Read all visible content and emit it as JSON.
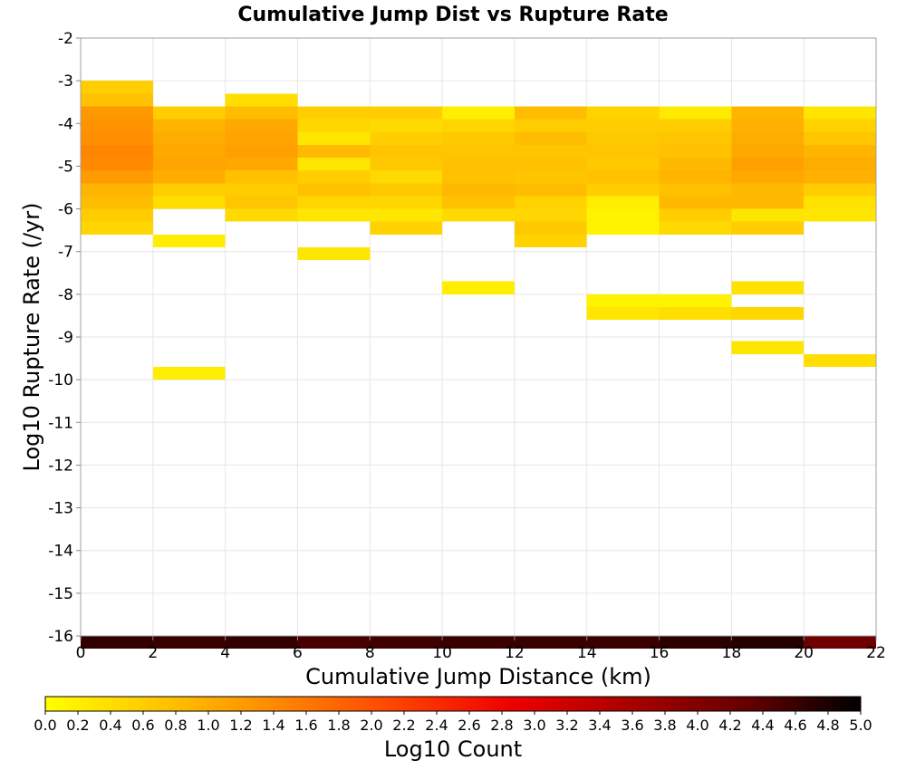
{
  "chart_data": {
    "type": "heatmap",
    "title": "Cumulative Jump Dist vs Rupture Rate",
    "xlabel": "Cumulative Jump Distance (km)",
    "ylabel": "Log10 Rupture Rate (/yr)",
    "xlim": [
      0,
      22
    ],
    "ylim": [
      -16,
      -2
    ],
    "x_ticks": [
      "0",
      "2",
      "4",
      "6",
      "8",
      "10",
      "12",
      "14",
      "16",
      "18",
      "20",
      "22"
    ],
    "y_ticks": [
      "-2",
      "-3",
      "-4",
      "-5",
      "-6",
      "-7",
      "-8",
      "-9",
      "-10",
      "-11",
      "-12",
      "-13",
      "-14",
      "-15",
      "-16"
    ],
    "x_bin_width": 2,
    "y_bin_height": 0.3,
    "grid": true,
    "colorbar": {
      "label": "Log10 Count",
      "range": [
        0.0,
        5.0
      ],
      "ticks": [
        "0.0",
        "0.2",
        "0.4",
        "0.6",
        "0.8",
        "1.0",
        "1.2",
        "1.4",
        "1.6",
        "1.8",
        "2.0",
        "2.2",
        "2.4",
        "2.6",
        "2.8",
        "3.0",
        "3.2",
        "3.4",
        "3.6",
        "3.8",
        "4.0",
        "4.2",
        "4.4",
        "4.6",
        "4.8",
        "5.0"
      ],
      "stops": [
        "#ffff00",
        "#ffc400",
        "#ff8800",
        "#ff4400",
        "#ee0000",
        "#aa0000",
        "#660000",
        "#000000"
      ]
    },
    "cells": [
      {
        "x": 0,
        "y": -3.0,
        "v": 0.6
      },
      {
        "x": 0,
        "y": -3.3,
        "v": 0.75
      },
      {
        "x": 0,
        "y": -3.6,
        "v": 1.25
      },
      {
        "x": 0,
        "y": -3.9,
        "v": 1.3
      },
      {
        "x": 0,
        "y": -4.2,
        "v": 1.35
      },
      {
        "x": 0,
        "y": -4.5,
        "v": 1.45
      },
      {
        "x": 0,
        "y": -4.8,
        "v": 1.4
      },
      {
        "x": 0,
        "y": -5.1,
        "v": 1.2
      },
      {
        "x": 0,
        "y": -5.4,
        "v": 0.9
      },
      {
        "x": 0,
        "y": -5.7,
        "v": 0.8
      },
      {
        "x": 0,
        "y": -6.0,
        "v": 0.6
      },
      {
        "x": 0,
        "y": -6.3,
        "v": 0.5
      },
      {
        "x": 2,
        "y": -3.6,
        "v": 0.6
      },
      {
        "x": 2,
        "y": -3.9,
        "v": 0.9
      },
      {
        "x": 2,
        "y": -4.2,
        "v": 1.0
      },
      {
        "x": 2,
        "y": -4.5,
        "v": 1.05
      },
      {
        "x": 2,
        "y": -4.8,
        "v": 1.1
      },
      {
        "x": 2,
        "y": -5.1,
        "v": 1.0
      },
      {
        "x": 2,
        "y": -5.4,
        "v": 0.6
      },
      {
        "x": 2,
        "y": -5.7,
        "v": 0.4
      },
      {
        "x": 2,
        "y": -6.6,
        "v": 0.2
      },
      {
        "x": 2,
        "y": -9.7,
        "v": 0.2
      },
      {
        "x": 4,
        "y": -3.3,
        "v": 0.4
      },
      {
        "x": 4,
        "y": -3.6,
        "v": 0.8
      },
      {
        "x": 4,
        "y": -3.9,
        "v": 1.05
      },
      {
        "x": 4,
        "y": -4.2,
        "v": 1.1
      },
      {
        "x": 4,
        "y": -4.5,
        "v": 1.15
      },
      {
        "x": 4,
        "y": -4.8,
        "v": 1.05
      },
      {
        "x": 4,
        "y": -5.1,
        "v": 0.75
      },
      {
        "x": 4,
        "y": -5.4,
        "v": 0.6
      },
      {
        "x": 4,
        "y": -5.7,
        "v": 0.7
      },
      {
        "x": 4,
        "y": -6.0,
        "v": 0.45
      },
      {
        "x": 6,
        "y": -3.6,
        "v": 0.6
      },
      {
        "x": 6,
        "y": -3.9,
        "v": 0.5
      },
      {
        "x": 6,
        "y": -4.2,
        "v": 0.3
      },
      {
        "x": 6,
        "y": -4.5,
        "v": 0.85
      },
      {
        "x": 6,
        "y": -4.8,
        "v": 0.3
      },
      {
        "x": 6,
        "y": -5.1,
        "v": 0.6
      },
      {
        "x": 6,
        "y": -5.4,
        "v": 0.75
      },
      {
        "x": 6,
        "y": -5.7,
        "v": 0.5
      },
      {
        "x": 6,
        "y": -6.0,
        "v": 0.3
      },
      {
        "x": 6,
        "y": -6.9,
        "v": 0.3
      },
      {
        "x": 8,
        "y": -3.6,
        "v": 0.6
      },
      {
        "x": 8,
        "y": -3.9,
        "v": 0.45
      },
      {
        "x": 8,
        "y": -4.2,
        "v": 0.6
      },
      {
        "x": 8,
        "y": -4.5,
        "v": 0.7
      },
      {
        "x": 8,
        "y": -4.8,
        "v": 0.65
      },
      {
        "x": 8,
        "y": -5.1,
        "v": 0.45
      },
      {
        "x": 8,
        "y": -5.4,
        "v": 0.65
      },
      {
        "x": 8,
        "y": -5.7,
        "v": 0.5
      },
      {
        "x": 8,
        "y": -6.0,
        "v": 0.3
      },
      {
        "x": 8,
        "y": -6.3,
        "v": 0.55
      },
      {
        "x": 10,
        "y": -3.6,
        "v": 0.2
      },
      {
        "x": 10,
        "y": -3.9,
        "v": 0.5
      },
      {
        "x": 10,
        "y": -4.2,
        "v": 0.65
      },
      {
        "x": 10,
        "y": -4.5,
        "v": 0.7
      },
      {
        "x": 10,
        "y": -4.8,
        "v": 0.75
      },
      {
        "x": 10,
        "y": -5.1,
        "v": 0.75
      },
      {
        "x": 10,
        "y": -5.4,
        "v": 0.85
      },
      {
        "x": 10,
        "y": -5.7,
        "v": 0.75
      },
      {
        "x": 10,
        "y": -6.0,
        "v": 0.45
      },
      {
        "x": 10,
        "y": -7.7,
        "v": 0.2
      },
      {
        "x": 12,
        "y": -3.6,
        "v": 0.8
      },
      {
        "x": 12,
        "y": -3.9,
        "v": 0.6
      },
      {
        "x": 12,
        "y": -4.2,
        "v": 0.8
      },
      {
        "x": 12,
        "y": -4.5,
        "v": 0.7
      },
      {
        "x": 12,
        "y": -4.8,
        "v": 0.75
      },
      {
        "x": 12,
        "y": -5.1,
        "v": 0.7
      },
      {
        "x": 12,
        "y": -5.4,
        "v": 0.8
      },
      {
        "x": 12,
        "y": -5.7,
        "v": 0.55
      },
      {
        "x": 12,
        "y": -6.0,
        "v": 0.5
      },
      {
        "x": 12,
        "y": -6.3,
        "v": 0.65
      },
      {
        "x": 12,
        "y": -6.6,
        "v": 0.55
      },
      {
        "x": 14,
        "y": -3.6,
        "v": 0.55
      },
      {
        "x": 14,
        "y": -3.9,
        "v": 0.6
      },
      {
        "x": 14,
        "y": -4.2,
        "v": 0.65
      },
      {
        "x": 14,
        "y": -4.5,
        "v": 0.7
      },
      {
        "x": 14,
        "y": -4.8,
        "v": 0.65
      },
      {
        "x": 14,
        "y": -5.1,
        "v": 0.75
      },
      {
        "x": 14,
        "y": -5.4,
        "v": 0.6
      },
      {
        "x": 14,
        "y": -5.7,
        "v": 0.2
      },
      {
        "x": 14,
        "y": -6.0,
        "v": 0.15
      },
      {
        "x": 14,
        "y": -6.3,
        "v": 0.15
      },
      {
        "x": 14,
        "y": -8.0,
        "v": 0.15
      },
      {
        "x": 14,
        "y": -8.3,
        "v": 0.3
      },
      {
        "x": 16,
        "y": -3.6,
        "v": 0.25
      },
      {
        "x": 16,
        "y": -3.9,
        "v": 0.6
      },
      {
        "x": 16,
        "y": -4.2,
        "v": 0.7
      },
      {
        "x": 16,
        "y": -4.5,
        "v": 0.75
      },
      {
        "x": 16,
        "y": -4.8,
        "v": 0.85
      },
      {
        "x": 16,
        "y": -5.1,
        "v": 0.9
      },
      {
        "x": 16,
        "y": -5.4,
        "v": 0.75
      },
      {
        "x": 16,
        "y": -5.7,
        "v": 0.85
      },
      {
        "x": 16,
        "y": -6.0,
        "v": 0.6
      },
      {
        "x": 16,
        "y": -6.3,
        "v": 0.45
      },
      {
        "x": 16,
        "y": -8.0,
        "v": 0.15
      },
      {
        "x": 16,
        "y": -8.3,
        "v": 0.4
      },
      {
        "x": 18,
        "y": -3.6,
        "v": 0.9
      },
      {
        "x": 18,
        "y": -3.9,
        "v": 0.95
      },
      {
        "x": 18,
        "y": -4.2,
        "v": 1.0
      },
      {
        "x": 18,
        "y": -4.5,
        "v": 1.05
      },
      {
        "x": 18,
        "y": -4.8,
        "v": 1.15
      },
      {
        "x": 18,
        "y": -5.1,
        "v": 1.05
      },
      {
        "x": 18,
        "y": -5.4,
        "v": 0.85
      },
      {
        "x": 18,
        "y": -5.7,
        "v": 0.85
      },
      {
        "x": 18,
        "y": -6.0,
        "v": 0.3
      },
      {
        "x": 18,
        "y": -6.3,
        "v": 0.6
      },
      {
        "x": 18,
        "y": -7.7,
        "v": 0.35
      },
      {
        "x": 18,
        "y": -8.3,
        "v": 0.5
      },
      {
        "x": 18,
        "y": -9.1,
        "v": 0.3
      },
      {
        "x": 20,
        "y": -3.6,
        "v": 0.3
      },
      {
        "x": 20,
        "y": -3.9,
        "v": 0.55
      },
      {
        "x": 20,
        "y": -4.2,
        "v": 0.7
      },
      {
        "x": 20,
        "y": -4.5,
        "v": 0.9
      },
      {
        "x": 20,
        "y": -4.8,
        "v": 1.0
      },
      {
        "x": 20,
        "y": -5.1,
        "v": 0.95
      },
      {
        "x": 20,
        "y": -5.4,
        "v": 0.6
      },
      {
        "x": 20,
        "y": -5.7,
        "v": 0.35
      },
      {
        "x": 20,
        "y": -6.0,
        "v": 0.3
      },
      {
        "x": 20,
        "y": -9.4,
        "v": 0.4
      },
      {
        "x": 0,
        "y": -16.0,
        "v": 4.65
      },
      {
        "x": 2,
        "y": -16.0,
        "v": 4.6
      },
      {
        "x": 4,
        "y": -16.0,
        "v": 4.65
      },
      {
        "x": 6,
        "y": -16.0,
        "v": 4.5
      },
      {
        "x": 8,
        "y": -16.0,
        "v": 4.55
      },
      {
        "x": 10,
        "y": -16.0,
        "v": 4.6
      },
      {
        "x": 12,
        "y": -16.0,
        "v": 4.6
      },
      {
        "x": 14,
        "y": -16.0,
        "v": 4.6
      },
      {
        "x": 16,
        "y": -16.0,
        "v": 4.7
      },
      {
        "x": 18,
        "y": -16.0,
        "v": 4.75
      },
      {
        "x": 20,
        "y": -16.0,
        "v": 4.2
      }
    ]
  }
}
